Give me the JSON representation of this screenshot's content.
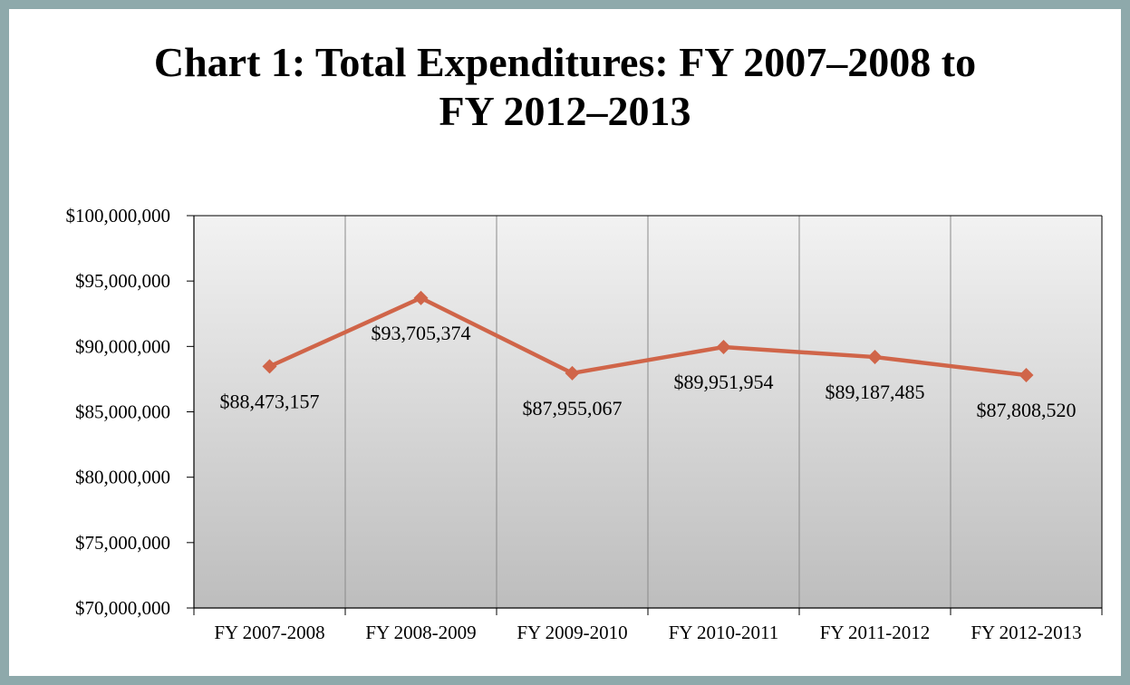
{
  "chart_data": {
    "type": "line",
    "title_lines": [
      "Chart 1: Total Expenditures: FY 2007–2008 to",
      "FY 2012–2013"
    ],
    "categories": [
      "FY 2007-2008",
      "FY 2008-2009",
      "FY 2009-2010",
      "FY 2010-2011",
      "FY 2011-2012",
      "FY 2012-2013"
    ],
    "series": [
      {
        "values": [
          88473157,
          93705374,
          87955067,
          89951954,
          89187485,
          87808520
        ],
        "labels": [
          "$88,473,157",
          "$93,705,374",
          "$87,955,067",
          "$89,951,954",
          "$89,187,485",
          "$87,808,520"
        ],
        "color": "#d06549"
      }
    ],
    "ylim": [
      70000000,
      100000000
    ],
    "yticks": [
      100000000,
      95000000,
      90000000,
      85000000,
      80000000,
      75000000,
      70000000
    ],
    "ytick_labels": [
      "$100,000,000",
      "$95,000,000",
      "$90,000,000",
      "$85,000,000",
      "$80,000,000",
      "$75,000,000",
      "$70,000,000"
    ],
    "grid": "vertical",
    "plot_background": "gradient-gray",
    "legend": "none"
  }
}
